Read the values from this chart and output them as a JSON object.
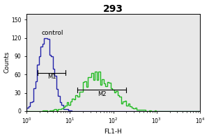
{
  "title": "293",
  "xlabel": "FL1-H",
  "ylabel": "Counts",
  "xlim_log": [
    1,
    10000
  ],
  "ylim": [
    0,
    160
  ],
  "yticks": [
    0,
    30,
    60,
    90,
    120,
    150
  ],
  "blue_color": "#2222aa",
  "green_color": "#22bb22",
  "bg_color": "#e8e8e8",
  "control_label": "control",
  "m1_label": "M1",
  "m2_label": "M2",
  "blue_peak_mean_log": 0.45,
  "blue_peak_std_log": 0.17,
  "blue_peak_height": 120,
  "green_peak_mean_log": 1.65,
  "green_peak_std_log": 0.38,
  "green_peak_height": 65,
  "n_blue": 4000,
  "n_green": 2500,
  "n_bins": 100,
  "figsize": [
    3.0,
    2.0
  ],
  "dpi": 100
}
